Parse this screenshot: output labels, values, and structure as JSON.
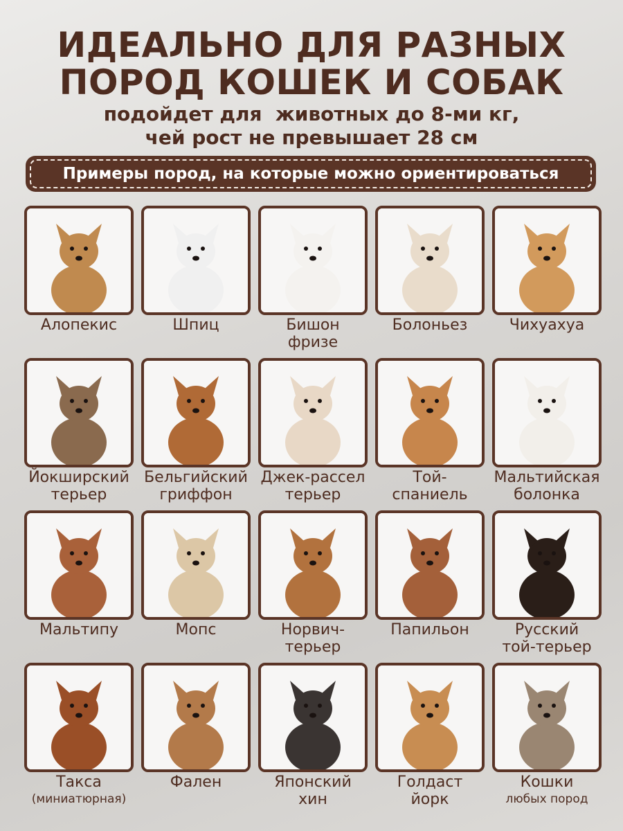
{
  "header": {
    "title_lines": [
      "ИДЕАЛЬНО ДЛЯ РАЗНЫХ",
      "ПОРОД КОШЕК И СОБАК"
    ],
    "subtitle_lines": [
      "подойдет для  животных до 8-ми кг,",
      "чей рост не превышает 28 см"
    ]
  },
  "banner": {
    "text": "Примеры пород, на которые можно ориентироваться"
  },
  "colors": {
    "brand": "#5a3426",
    "text": "#4e2c20"
  },
  "breeds": [
    {
      "lines": [
        "Алопекис"
      ],
      "fur": "#c08a4f"
    },
    {
      "lines": [
        "Шпиц"
      ],
      "fur": "#f0f0f0"
    },
    {
      "lines": [
        "Бишон",
        "фризе"
      ],
      "fur": "#f4f2ef"
    },
    {
      "lines": [
        "Болоньез"
      ],
      "fur": "#e9dccb"
    },
    {
      "lines": [
        "Чихуахуа"
      ],
      "fur": "#d29a5c"
    },
    {
      "lines": [
        "Йокширский",
        "терьер"
      ],
      "fur": "#8a6a4e"
    },
    {
      "lines": [
        "Бельгийский",
        "гриффон"
      ],
      "fur": "#b06a36"
    },
    {
      "lines": [
        "Джек-рассел",
        "терьер"
      ],
      "fur": "#e8d8c6"
    },
    {
      "lines": [
        "Той-",
        "спаниель"
      ],
      "fur": "#c7864c"
    },
    {
      "lines": [
        "Мальтийская",
        "болонка"
      ],
      "fur": "#f2efea"
    },
    {
      "lines": [
        "Мальтипу"
      ],
      "fur": "#a9613a"
    },
    {
      "lines": [
        "Мопс"
      ],
      "fur": "#dcc7a6"
    },
    {
      "lines": [
        "Норвич-",
        "терьер"
      ],
      "fur": "#b2723e"
    },
    {
      "lines": [
        "Папильон"
      ],
      "fur": "#a4603a"
    },
    {
      "lines": [
        "Русский",
        "той-терьер"
      ],
      "fur": "#2a1e18"
    },
    {
      "lines": [
        "Такса",
        "(миниатюрная)"
      ],
      "fur": "#9a4f27",
      "small_second": true
    },
    {
      "lines": [
        "Фален"
      ],
      "fur": "#b37a4a"
    },
    {
      "lines": [
        "Японский",
        "хин"
      ],
      "fur": "#3a3432"
    },
    {
      "lines": [
        "Голдаст",
        "йорк"
      ],
      "fur": "#c88d52"
    },
    {
      "lines": [
        "Кошки",
        "любых пород"
      ],
      "fur": "#9a8672",
      "small_second": true
    }
  ]
}
